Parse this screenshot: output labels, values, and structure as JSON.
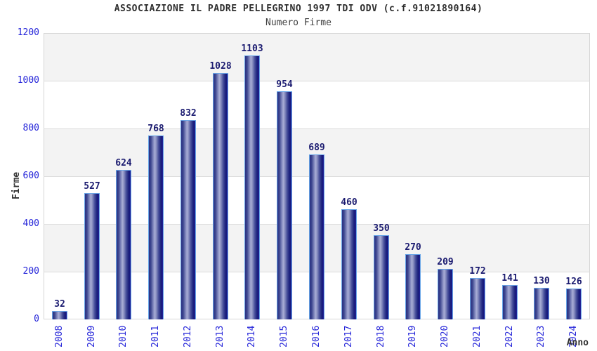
{
  "chart_data": {
    "type": "bar",
    "title": "ASSOCIAZIONE IL PADRE PELLEGRINO 1997 TDI ODV (c.f.91021890164)",
    "subtitle": "Numero Firme",
    "xlabel": "Anno",
    "ylabel": "Firme",
    "categories": [
      "2008",
      "2009",
      "2010",
      "2011",
      "2012",
      "2013",
      "2014",
      "2015",
      "2016",
      "2017",
      "2018",
      "2019",
      "2020",
      "2021",
      "2022",
      "2023",
      "2024"
    ],
    "values": [
      32,
      527,
      624,
      768,
      832,
      1028,
      1103,
      954,
      689,
      460,
      350,
      270,
      209,
      172,
      141,
      130,
      126
    ],
    "ylim": [
      0,
      1200
    ],
    "yticks": [
      0,
      200,
      400,
      600,
      800,
      1000,
      1200
    ],
    "legend_position": "none",
    "grid": "alternating horizontal bands every 200 units",
    "colors": {
      "bar_border": "#69a6e8",
      "bar_dark": "#252c80",
      "bar_light": "#a9aed6",
      "axis_tick_label": "#2525d9",
      "value_label": "#1b1b70",
      "band_gray": "#f3f3f3",
      "grid_line": "#dddddd",
      "title_color": "#2e2e2e",
      "subtitle_color": "#3f3f3f",
      "axis_title_color": "#333333"
    }
  }
}
